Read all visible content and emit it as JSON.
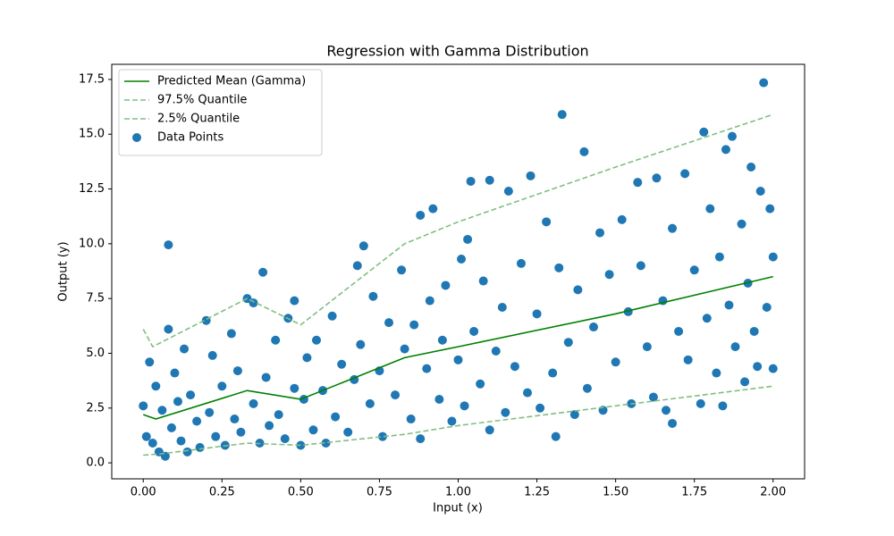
{
  "chart_data": {
    "type": "scatter",
    "title": "Regression with Gamma Distribution",
    "xlabel": "Input (x)",
    "ylabel": "Output (y)",
    "xlim": [
      -0.1,
      2.1
    ],
    "ylim": [
      -0.73,
      18.19
    ],
    "xticks": [
      {
        "value": 0,
        "label": "0.00"
      },
      {
        "value": 0.25,
        "label": "0.25"
      },
      {
        "value": 0.5,
        "label": "0.50"
      },
      {
        "value": 0.75,
        "label": "0.75"
      },
      {
        "value": 1,
        "label": "1.00"
      },
      {
        "value": 1.25,
        "label": "1.25"
      },
      {
        "value": 1.5,
        "label": "1.50"
      },
      {
        "value": 1.75,
        "label": "1.75"
      },
      {
        "value": 2,
        "label": "2.00"
      }
    ],
    "yticks": [
      {
        "value": 0,
        "label": "0.0"
      },
      2.5,
      {
        "value": 5,
        "label": "5.0"
      },
      7.5,
      {
        "value": 10,
        "label": "10.0"
      },
      12.5,
      {
        "value": 15,
        "label": "15.0"
      },
      17.5
    ],
    "legend": "upper left",
    "series": [
      {
        "name": "Predicted Mean (Gamma)",
        "type": "line",
        "dash": false,
        "color": "#008000",
        "x": [
          0,
          0.04,
          0.33,
          0.5,
          0.83,
          1.0,
          1.5,
          2.0
        ],
        "values": [
          2.2,
          2.0,
          3.3,
          2.9,
          4.8,
          5.3,
          6.8,
          8.5
        ]
      },
      {
        "name": "97.5% Quantile",
        "type": "line",
        "dash": true,
        "color": "#80bf80",
        "x": [
          0,
          0.03,
          0.33,
          0.5,
          0.83,
          1.0,
          1.5,
          2.0
        ],
        "values": [
          6.1,
          5.3,
          7.5,
          6.3,
          10.0,
          11.0,
          13.5,
          15.9
        ]
      },
      {
        "name": "2.5% Quantile",
        "type": "line",
        "dash": true,
        "color": "#80bf80",
        "x": [
          0,
          0.05,
          0.33,
          0.5,
          0.83,
          1.0,
          1.5,
          2.0
        ],
        "values": [
          0.35,
          0.4,
          0.9,
          0.8,
          1.3,
          1.7,
          2.6,
          3.5
        ]
      },
      {
        "name": "Data Points",
        "type": "scatter",
        "color": "#1f77b4",
        "x": [
          0,
          0.01,
          0.02,
          0.03,
          0.04,
          0.05,
          0.06,
          0.07,
          0.08,
          0.08,
          0.09,
          0.1,
          0.11,
          0.12,
          0.13,
          0.14,
          0.15,
          0.17,
          0.18,
          0.2,
          0.21,
          0.22,
          0.23,
          0.25,
          0.26,
          0.28,
          0.29,
          0.3,
          0.31,
          0.33,
          0.35,
          0.35,
          0.37,
          0.38,
          0.39,
          0.4,
          0.42,
          0.43,
          0.45,
          0.46,
          0.48,
          0.48,
          0.5,
          0.51,
          0.52,
          0.54,
          0.55,
          0.57,
          0.58,
          0.6,
          0.61,
          0.63,
          0.65,
          0.67,
          0.68,
          0.69,
          0.7,
          0.72,
          0.73,
          0.75,
          0.76,
          0.78,
          0.8,
          0.82,
          0.83,
          0.85,
          0.86,
          0.88,
          0.88,
          0.9,
          0.91,
          0.92,
          0.94,
          0.95,
          0.96,
          0.98,
          1.0,
          1.01,
          1.02,
          1.03,
          1.04,
          1.05,
          1.07,
          1.08,
          1.1,
          1.1,
          1.12,
          1.14,
          1.15,
          1.16,
          1.18,
          1.2,
          1.22,
          1.23,
          1.25,
          1.26,
          1.28,
          1.3,
          1.31,
          1.32,
          1.33,
          1.35,
          1.37,
          1.38,
          1.4,
          1.41,
          1.43,
          1.45,
          1.46,
          1.48,
          1.5,
          1.52,
          1.54,
          1.55,
          1.57,
          1.58,
          1.6,
          1.62,
          1.63,
          1.65,
          1.66,
          1.68,
          1.68,
          1.7,
          1.72,
          1.73,
          1.75,
          1.77,
          1.78,
          1.79,
          1.8,
          1.82,
          1.83,
          1.84,
          1.85,
          1.86,
          1.87,
          1.88,
          1.9,
          1.91,
          1.92,
          1.93,
          1.94,
          1.95,
          1.96,
          1.97,
          1.98,
          1.99,
          2.0,
          2.0
        ],
        "values": [
          2.6,
          1.2,
          4.6,
          0.9,
          3.5,
          0.5,
          2.4,
          0.3,
          9.95,
          6.1,
          1.6,
          4.1,
          2.8,
          1.0,
          5.2,
          0.5,
          3.1,
          1.9,
          0.7,
          6.5,
          2.3,
          4.9,
          1.2,
          3.5,
          0.8,
          5.9,
          2.0,
          4.2,
          1.4,
          7.5,
          7.3,
          2.7,
          0.9,
          8.7,
          3.9,
          1.7,
          5.6,
          2.2,
          1.1,
          6.6,
          3.4,
          7.4,
          0.8,
          2.9,
          4.8,
          1.5,
          5.6,
          3.3,
          0.9,
          6.7,
          2.1,
          4.5,
          1.4,
          3.8,
          9.0,
          5.4,
          9.9,
          2.7,
          7.6,
          4.2,
          1.2,
          6.4,
          3.1,
          8.8,
          5.2,
          2.0,
          6.3,
          1.1,
          11.3,
          4.3,
          7.4,
          11.6,
          2.9,
          5.6,
          8.1,
          1.9,
          4.7,
          9.3,
          2.6,
          10.2,
          12.85,
          6.0,
          3.6,
          8.3,
          1.5,
          12.9,
          5.1,
          7.1,
          2.3,
          12.4,
          4.4,
          9.1,
          3.2,
          13.1,
          6.8,
          2.5,
          11.0,
          4.1,
          1.2,
          8.9,
          15.9,
          5.5,
          2.2,
          7.9,
          14.2,
          3.4,
          6.2,
          10.5,
          2.4,
          8.6,
          4.6,
          11.1,
          6.9,
          2.7,
          12.8,
          9.0,
          5.3,
          3.0,
          13.0,
          7.4,
          2.4,
          10.7,
          1.8,
          6.0,
          13.2,
          4.7,
          8.8,
          2.7,
          15.1,
          6.6,
          11.6,
          4.1,
          9.4,
          2.6,
          14.3,
          7.2,
          14.9,
          5.3,
          10.9,
          3.7,
          8.2,
          13.5,
          6.0,
          4.4,
          12.4,
          17.35,
          7.1,
          11.6,
          9.4,
          4.3
        ]
      }
    ]
  }
}
